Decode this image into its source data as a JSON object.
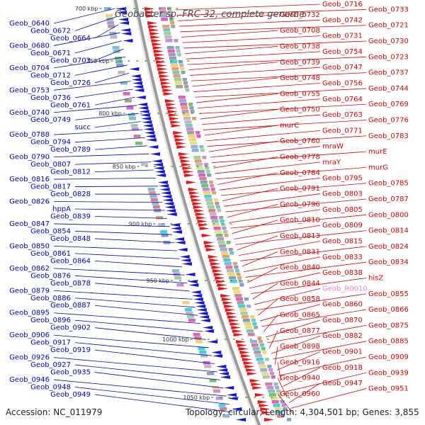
{
  "title": "Geobacter sp. FRC-32, complete genome",
  "footer": {
    "accession": "Accession: NC_011979",
    "topology": "Topology: circular; Length: 4,304,501 bp; Genes: 3,855"
  },
  "colors": {
    "left": "#0000cc",
    "right": "#dd0000",
    "pseudo": "#f080c0"
  },
  "ticks": [
    "700 kbp",
    "750 kbp",
    "800 kbp",
    "850 kbp",
    "900 kbp",
    "950 kbp",
    "1000 kbp",
    "1050 kbp"
  ],
  "left_labels": [
    "Geob_0640",
    "Geob_0672",
    "Geob_0664",
    "Geob_0680",
    "Geob_0671",
    "Geob_0703",
    "Geob_0704",
    "Geob_0712",
    "Geob_0726",
    "Geob_0753",
    "Geob_0736",
    "Geob_0761",
    "Geob_0740",
    "Geob_0749",
    "succ",
    "Geob_0788",
    "Geob_0794",
    "Geob_0789",
    "Geob_0790",
    "Geob_0807",
    "Geob_0812",
    "Geob_0816",
    "Geob_0817",
    "Geob_0828",
    "Geob_0826",
    "hppA",
    "Geob_0839",
    "Geob_0847",
    "Geob_0854",
    "Geob_0848",
    "Geob_0850",
    "Geob_0861",
    "Geob_0864",
    "Geob_0862",
    "Geob_0876",
    "Geob_0878",
    "Geob_0879",
    "Geob_0886",
    "Geob_0887",
    "Geob_0895",
    "Geob_0896",
    "Geob_0902",
    "Geob_0906",
    "Geob_0917",
    "Geob_0919",
    "Geob_0926",
    "Geob_0927",
    "Geob_0935",
    "Geob_0946",
    "Geob_0948",
    "Geob_0949"
  ],
  "right_labels": [
    "Geob_0716",
    "Geob_0733",
    "Geob_0732",
    "Geob_0742",
    "Geob_0721",
    "Geob_0708",
    "Geob_0731",
    "Geob_0730",
    "Geob_0738",
    "Geob_0754",
    "Geob_0723",
    "Geob_0739",
    "Geob_0747",
    "Geob_0737",
    "Geob_0748",
    "Geob_0756",
    "Geob_0744",
    "Geob_0755",
    "Geob_0764",
    "Geob_0769",
    "Geob_0750",
    "Geob_0763",
    "Geob_0776",
    "murC",
    "Geob_0771",
    "Geob_0783",
    "Geob_0760",
    "mraW",
    "murE",
    "Geob_0778",
    "mraY",
    "murG",
    "Geob_0784",
    "Geob_0795",
    "Geob_0785",
    "Geob_0791",
    "Geob_0803",
    "Geob_0787",
    "Geob_0796",
    "Geob_0805",
    "Geob_0800",
    "Geob_0810",
    "Geob_0809",
    "Geob_0814",
    "Geob_0813",
    "Geob_0815",
    "Geob_0824",
    "Geob_0831",
    "Geob_0833",
    "Geob_0834",
    "Geob_0840",
    "Geob_0838",
    "hisZ",
    "Geob_0844",
    "Geob_R0010",
    "Geob_0855",
    "Geob_0858",
    "Geob_0860",
    "Geob_0866",
    "Geob_0865",
    "Geob_0870",
    "Geob_0875",
    "Geob_0877",
    "Geob_0882",
    "Geob_0885",
    "Geob_0898",
    "Geob_0901",
    "Geob_0909",
    "Geob_0916",
    "Geob_0918",
    "Geob_0939",
    "Geob_0940",
    "Geob_0947",
    "Geob_0951",
    "Geob_0960"
  ]
}
